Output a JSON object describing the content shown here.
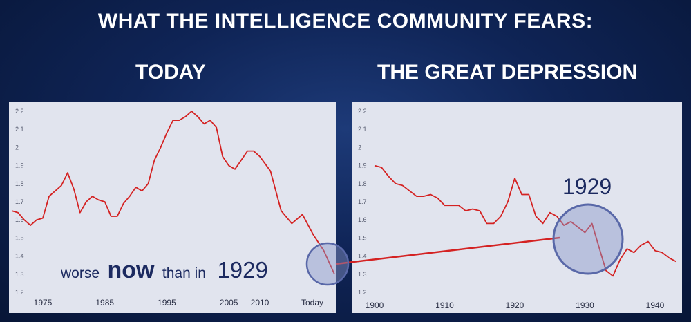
{
  "header": {
    "title": "WHAT THE INTELLIGENCE COMMUNITY FEARS:"
  },
  "panels": {
    "left_heading": "TODAY",
    "right_heading": "THE GREAT DEPRESSION"
  },
  "annotations": {
    "left_prefix": "worse",
    "left_emphasis": "now",
    "left_middle": "than in",
    "left_year": "1929",
    "right_year": "1929"
  },
  "colors": {
    "background": "#0f2456",
    "panel": "#e1e4ee",
    "line": "#d42222",
    "text_dark": "#1c2a60",
    "circle_stroke": "#5968a8",
    "circle_fill": "#8a96c8"
  },
  "chart_data": [
    {
      "type": "line",
      "title": "TODAY",
      "x_tick_labels": [
        "1975",
        "1985",
        "1995",
        "2005",
        "2010",
        "Today"
      ],
      "y_ticks": [
        "2.2",
        "2.1",
        "2",
        "1.9",
        "1.8",
        "1.7",
        "1.6",
        "1.5",
        "1.4",
        "1.3",
        "1.2"
      ],
      "ylim": [
        1.2,
        2.2
      ],
      "grid": false,
      "series": [
        {
          "x": [
            1970,
            1971,
            1972,
            1973,
            1974,
            1975,
            1976,
            1977,
            1978,
            1979,
            1980,
            1981,
            1982,
            1983,
            1984,
            1985,
            1986,
            1987,
            1988,
            1989,
            1990,
            1991,
            1992,
            1993,
            1994,
            1995,
            1996,
            1997,
            1998,
            1999,
            2000,
            2001,
            2002,
            2003,
            2004,
            2005,
            2006,
            2007,
            2008,
            2009,
            2010,
            2011,
            2012,
            2013,
            2014,
            2015,
            2016,
            2017
          ],
          "values": [
            1.65,
            1.64,
            1.6,
            1.57,
            1.6,
            1.61,
            1.73,
            1.76,
            1.79,
            1.86,
            1.77,
            1.64,
            1.7,
            1.73,
            1.71,
            1.7,
            1.62,
            1.62,
            1.69,
            1.73,
            1.78,
            1.76,
            1.8,
            1.93,
            2.0,
            2.08,
            2.15,
            2.15,
            2.17,
            2.2,
            2.17,
            2.13,
            2.15,
            2.11,
            1.95,
            1.9,
            1.88,
            1.93,
            1.98,
            1.98,
            1.95,
            1.87,
            1.65,
            1.58,
            1.63,
            1.52,
            1.43,
            1.3
          ]
        }
      ]
    },
    {
      "type": "line",
      "title": "THE GREAT DEPRESSION",
      "x_tick_labels": [
        "1900",
        "1910",
        "1920",
        "1930",
        "1940"
      ],
      "y_ticks": [
        "2.2",
        "2.1",
        "2",
        "1.9",
        "1.8",
        "1.7",
        "1.6",
        "1.5",
        "1.4",
        "1.3",
        "1.2"
      ],
      "ylim": [
        1.2,
        2.2
      ],
      "grid": false,
      "series": [
        {
          "x": [
            1900,
            1901,
            1902,
            1903,
            1904,
            1905,
            1906,
            1907,
            1908,
            1909,
            1910,
            1911,
            1912,
            1913,
            1914,
            1915,
            1916,
            1917,
            1918,
            1919,
            1920,
            1921,
            1922,
            1923,
            1924,
            1925,
            1926,
            1927,
            1928,
            1929,
            1930,
            1931,
            1932,
            1933,
            1934,
            1935,
            1936,
            1937,
            1938,
            1939,
            1940,
            1941,
            1942,
            1943
          ],
          "values": [
            1.9,
            1.89,
            1.84,
            1.8,
            1.79,
            1.76,
            1.73,
            1.73,
            1.74,
            1.72,
            1.68,
            1.68,
            1.68,
            1.65,
            1.66,
            1.65,
            1.58,
            1.58,
            1.62,
            1.7,
            1.83,
            1.74,
            1.74,
            1.62,
            1.58,
            1.64,
            1.62,
            1.57,
            1.59,
            1.56,
            1.53,
            1.58,
            1.45,
            1.32,
            1.29,
            1.38,
            1.44,
            1.42,
            1.46,
            1.48,
            1.43,
            1.42,
            1.39,
            1.37
          ]
        }
      ]
    }
  ]
}
